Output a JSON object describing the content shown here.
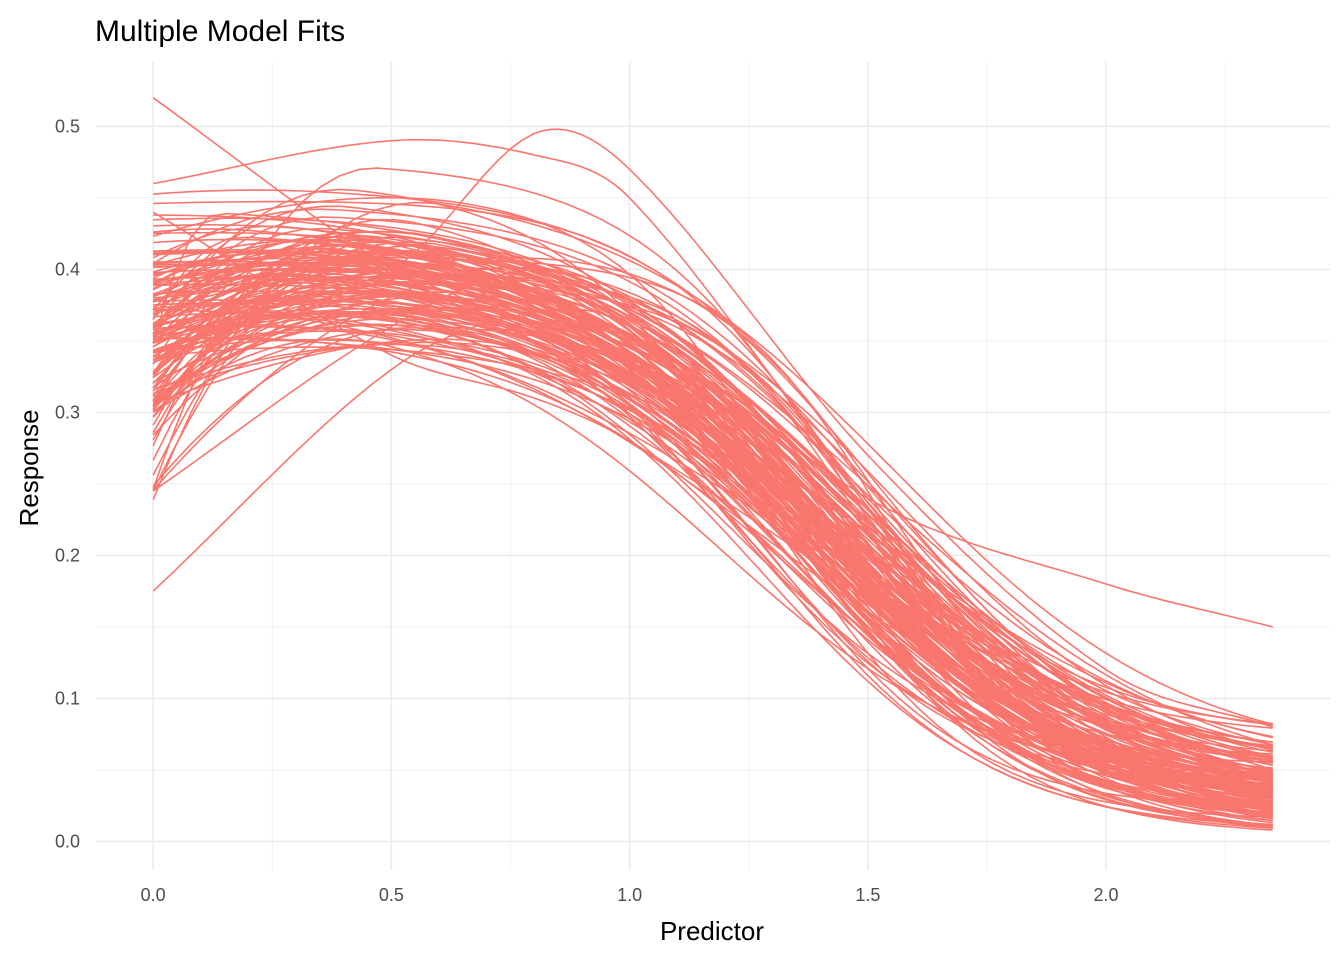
{
  "chart_data": {
    "type": "line",
    "title": "Multiple Model Fits",
    "xlabel": "Predictor",
    "ylabel": "Response",
    "xlim": [
      -0.12,
      2.47
    ],
    "ylim": [
      -0.02,
      0.545
    ],
    "x_ticks": [
      0.0,
      0.5,
      1.0,
      1.5,
      2.0
    ],
    "x_tick_labels": [
      "0.0",
      "0.5",
      "1.0",
      "1.5",
      "2.0"
    ],
    "y_ticks": [
      0.0,
      0.1,
      0.2,
      0.3,
      0.4,
      0.5
    ],
    "y_tick_labels": [
      "0.0",
      "0.1",
      "0.2",
      "0.3",
      "0.4",
      "0.5"
    ],
    "x_minor_ticks": [
      0.25,
      0.75,
      1.25,
      1.75,
      2.25
    ],
    "y_minor_ticks": [
      0.05,
      0.15,
      0.25,
      0.35,
      0.45
    ],
    "grid": true,
    "legend": "none",
    "line_color": "#F8766D",
    "x_range": [
      0.0,
      2.35
    ],
    "series_count": 150,
    "series": [
      {
        "x": [
          0.0,
          0.5,
          0.8,
          1.0,
          1.5,
          2.0,
          2.35
        ],
        "values": [
          0.38,
          0.395,
          0.39,
          0.36,
          0.2,
          0.06,
          0.02
        ]
      },
      {
        "x": [
          0.0,
          0.5,
          0.8,
          1.0,
          1.5,
          2.0,
          2.35
        ],
        "values": [
          0.175,
          0.33,
          0.37,
          0.36,
          0.22,
          0.08,
          0.04
        ]
      },
      {
        "x": [
          0.0,
          0.5,
          0.8,
          1.0,
          1.5,
          2.0,
          2.35
        ],
        "values": [
          0.52,
          0.4,
          0.35,
          0.32,
          0.2,
          0.09,
          0.05
        ]
      },
      {
        "x": [
          0.0,
          0.5,
          0.8,
          1.0,
          1.5,
          2.0,
          2.35
        ],
        "values": [
          0.36,
          0.4,
          0.495,
          0.47,
          0.27,
          0.12,
          0.08
        ]
      },
      {
        "x": [
          0.0,
          0.5,
          0.8,
          1.0,
          1.5,
          2.0,
          2.35
        ],
        "values": [
          0.245,
          0.36,
          0.4,
          0.37,
          0.24,
          0.18,
          0.15
        ]
      },
      {
        "x": [
          0.0,
          0.5,
          0.8,
          1.0,
          1.5,
          2.0,
          2.35
        ],
        "values": [
          0.46,
          0.49,
          0.48,
          0.45,
          0.24,
          0.08,
          0.03
        ]
      },
      {
        "x": [
          0.0,
          0.5,
          0.8,
          1.0,
          1.5,
          2.0,
          2.35
        ],
        "values": [
          0.44,
          0.34,
          0.31,
          0.28,
          0.17,
          0.05,
          0.02
        ]
      }
    ]
  }
}
